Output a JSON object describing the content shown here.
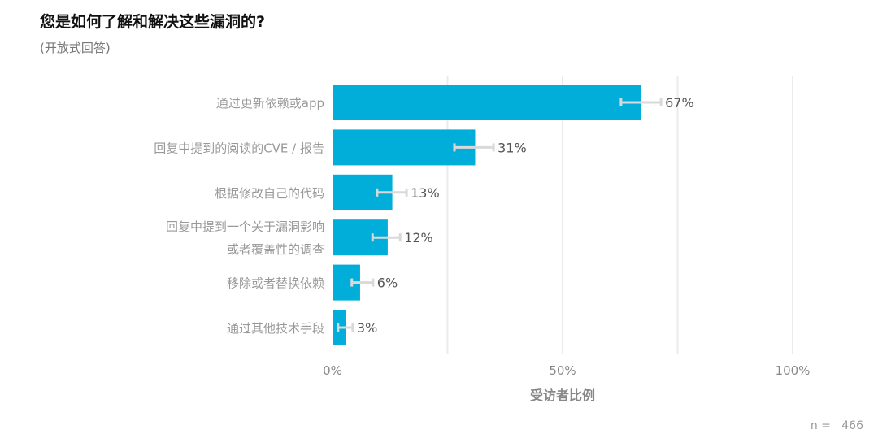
{
  "header": {
    "title": "您是如何了解和解决这些漏洞的?",
    "subtitle": "(开放式回答)"
  },
  "footer": {
    "n_label": "n =   466"
  },
  "chart_data": {
    "type": "bar",
    "orientation": "horizontal",
    "title": "您是如何了解和解决这些漏洞的?",
    "subtitle": "(开放式回答)",
    "categories": [
      [
        "通过更新依赖或app"
      ],
      [
        "回复中提到的阅读的CVE / 报告"
      ],
      [
        "根据修改自己的代码"
      ],
      [
        "回复中提到一个关于漏洞影响",
        "或者覆盖性的调查"
      ],
      [
        "移除或者替换依赖"
      ],
      [
        "通过其他技术手段"
      ]
    ],
    "values": [
      67,
      31,
      13,
      12,
      6,
      3
    ],
    "value_labels": [
      "67%",
      "31%",
      "13%",
      "12%",
      "6%",
      "3%"
    ],
    "error_low": [
      62.7,
      26.5,
      9.7,
      8.7,
      4.2,
      1.2
    ],
    "error_high": [
      71.4,
      35.0,
      16.1,
      14.7,
      8.8,
      4.4
    ],
    "xlim": [
      0,
      100
    ],
    "xticks": [
      0,
      50,
      100
    ],
    "xtick_labels": [
      "0%",
      "50%",
      "100%"
    ],
    "gridlines": [
      25,
      50,
      75,
      100
    ],
    "xlabel": "受访者比例",
    "ylabel": "",
    "grid": true,
    "bar_color": "#00AED9",
    "error_bar_color": "#D9D9D9",
    "grid_color": "#EBEBEB"
  }
}
